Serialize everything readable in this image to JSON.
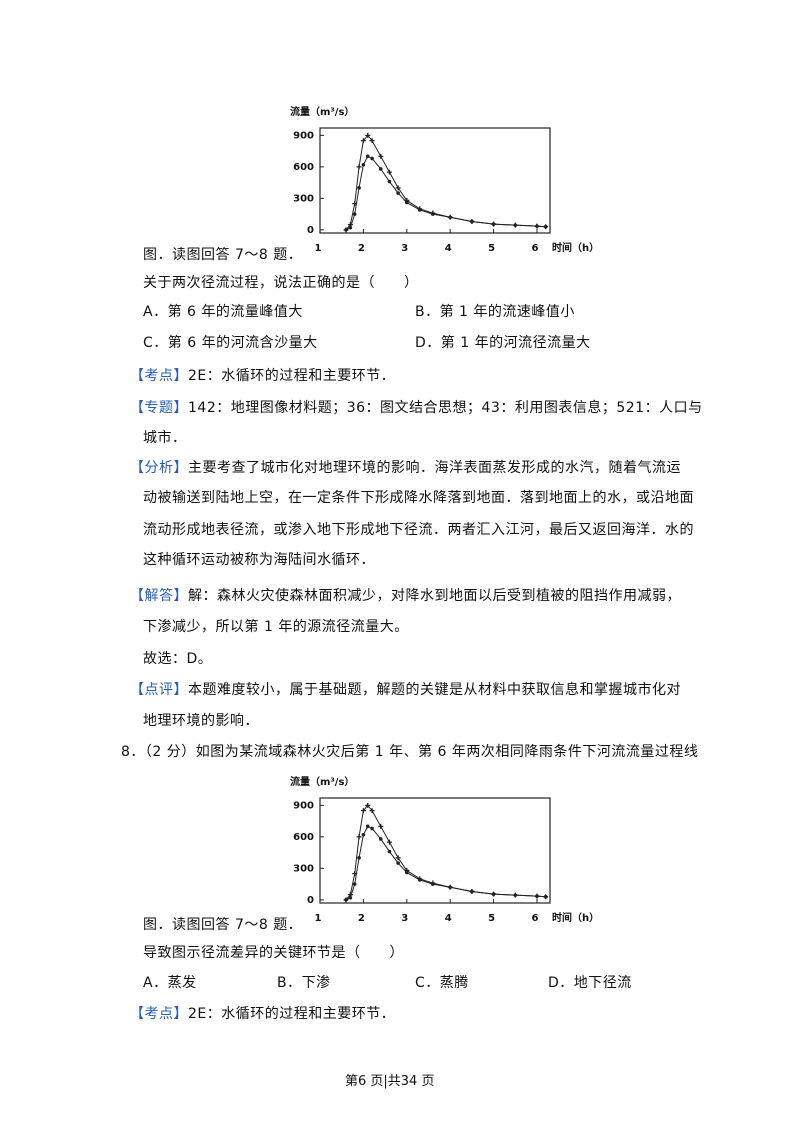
{
  "chart_data": [
    {
      "type": "line",
      "y_label": "流量（m³/s）",
      "x_label": "时间（h）",
      "x": [
        1.6,
        1.7,
        1.8,
        1.9,
        2.0,
        2.1,
        2.2,
        2.4,
        2.6,
        2.8,
        3.0,
        3.3,
        3.6,
        4.0,
        4.5,
        5.0,
        5.5,
        6.0,
        6.2
      ],
      "series": [
        {
          "color": "#222222",
          "marker": "plus",
          "values": [
            0,
            50,
            250,
            600,
            850,
            900,
            850,
            700,
            550,
            400,
            280,
            200,
            160,
            120,
            80,
            55,
            45,
            35,
            30
          ]
        },
        {
          "color": "#222222",
          "marker": "dot",
          "values": [
            0,
            20,
            150,
            400,
            620,
            700,
            680,
            580,
            460,
            350,
            260,
            190,
            150,
            120,
            80,
            55,
            45,
            35,
            30
          ]
        }
      ],
      "xlim": [
        1,
        6.3
      ],
      "xticks": [
        1,
        2,
        3,
        4,
        5,
        6
      ],
      "ylim": [
        -30,
        970
      ],
      "yticks": [
        0,
        300,
        600,
        900
      ]
    },
    {
      "type": "line",
      "y_label": "流量（m³/s）",
      "x_label": "时间（h）",
      "x": [
        1.6,
        1.7,
        1.8,
        1.9,
        2.0,
        2.1,
        2.2,
        2.4,
        2.6,
        2.8,
        3.0,
        3.3,
        3.6,
        4.0,
        4.5,
        5.0,
        5.5,
        6.0,
        6.2
      ],
      "series": [
        {
          "color": "#222222",
          "marker": "plus",
          "values": [
            0,
            50,
            250,
            600,
            850,
            900,
            850,
            700,
            550,
            400,
            280,
            200,
            160,
            120,
            80,
            55,
            45,
            35,
            30
          ]
        },
        {
          "color": "#222222",
          "marker": "dot",
          "values": [
            0,
            20,
            150,
            400,
            620,
            700,
            680,
            580,
            460,
            350,
            260,
            190,
            150,
            120,
            80,
            55,
            45,
            35,
            30
          ]
        }
      ],
      "xlim": [
        1,
        6.3
      ],
      "xticks": [
        1,
        2,
        3,
        4,
        5,
        6
      ],
      "ylim": [
        -30,
        970
      ],
      "yticks": [
        0,
        300,
        600,
        900
      ]
    }
  ],
  "section1": {
    "caption": "图．读图回答 7～8 题．",
    "question": "关于两次径流过程，说法正确的是（　　）",
    "options": [
      "A．第 6 年的流量峰值大",
      "B．第 1 年的流速峰值小",
      "C．第 6 年的河流含沙量大",
      "D．第 1 年的河流径流量大"
    ],
    "notes": [
      {
        "tag": "【考点】",
        "lines": [
          "2E：水循环的过程和主要环节．"
        ]
      },
      {
        "tag": "【专题】",
        "lines": [
          "142：地理图像材料题；36：图文结合思想；43：利用图表信息；521：人口与",
          "城市．"
        ]
      },
      {
        "tag": "【分析】",
        "lines": [
          "主要考查了城市化对地理环境的影响．海洋表面蒸发形成的水汽，随着气流运",
          "动被输送到陆地上空，在一定条件下形成降水降落到地面．落到地面上的水，或沿地面",
          "流动形成地表径流，或渗入地下形成地下径流．两者汇入江河，最后又返回海洋．水的",
          "这种循环运动被称为海陆间水循环．"
        ]
      },
      {
        "tag": "【解答】",
        "lines": [
          "解：森林火灾使森林面积减少，对降水到地面以后受到植被的阻挡作用减弱，",
          "下渗减少，所以第 1 年的源流径流量大。"
        ]
      },
      {
        "lines": [
          "故选：D。"
        ]
      },
      {
        "tag": "【点评】",
        "lines": [
          "本题难度较小，属于基础题，解题的关键是从材料中获取信息和掌握城市化对",
          "地理环境的影响．"
        ]
      }
    ]
  },
  "section2": {
    "stem": "8．（2 分）如图为某流域森林火灾后第 1 年、第 6 年两次相同降雨条件下河流流量过程线",
    "caption": "图．读图回答 7～8 题．",
    "question": "导致图示径流差异的关键环节是（　　）",
    "options": [
      "A．蒸发",
      "B．下渗",
      "C．蒸腾",
      "D．地下径流"
    ],
    "notes": [
      {
        "tag": "【考点】",
        "lines": [
          "2E：水循环的过程和主要环节．"
        ]
      }
    ]
  },
  "footer": "第6 页|共34 页"
}
